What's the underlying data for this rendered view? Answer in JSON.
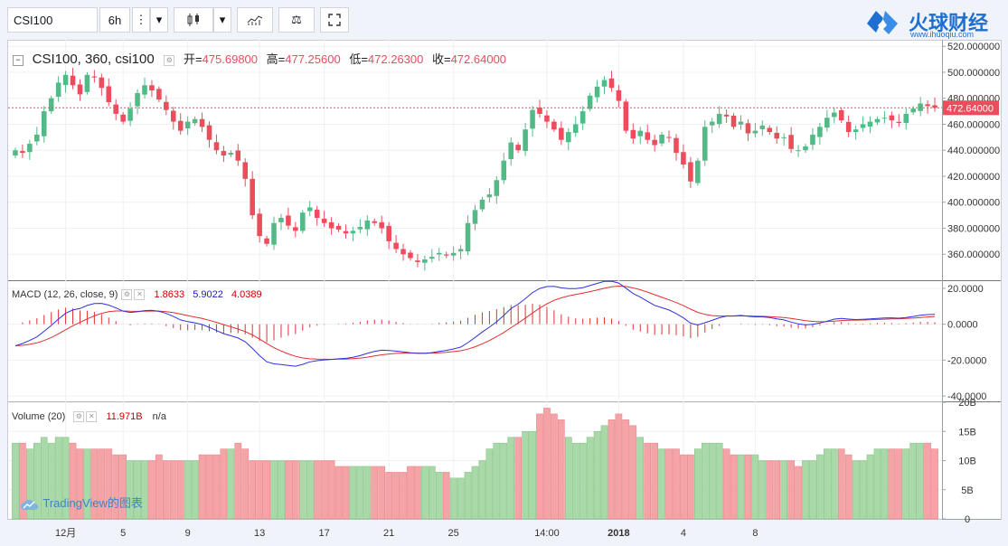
{
  "toolbar": {
    "symbol": "CSI100",
    "interval": "6h"
  },
  "brand": {
    "name": "火球财经",
    "url": "www.ihuoqiu.com"
  },
  "price_legend": {
    "title": "CSI100, 360, csi100",
    "open_label": "开=",
    "open": "475.69800",
    "high_label": "高=",
    "high": "477.25600",
    "low_label": "低=",
    "low": "472.26300",
    "close_label": "收=",
    "close": "472.64000"
  },
  "macd_legend": {
    "title": "MACD (12, 26, close, 9)",
    "hist": "1.8633",
    "macd": "5.9022",
    "signal": "4.0389"
  },
  "volume_legend": {
    "title": "Volume (20)",
    "value": "11.971B",
    "ma": "n/a"
  },
  "watermark": "TradingView的图表",
  "colors": {
    "up": "#53b987",
    "down": "#eb4d5c",
    "macd": "#3030e0",
    "signal": "#e03030",
    "up_vol": "#a9d9a8",
    "down_vol": "#f4a3a6"
  },
  "chart_data": [
    {
      "type": "candlestick",
      "title": "CSI100, 360, csi100",
      "ylim": [
        340,
        525
      ],
      "y_ticks": [
        "520.000000",
        "500.000000",
        "480.000000",
        "460.000000",
        "440.000000",
        "420.000000",
        "400.000000",
        "380.000000",
        "360.000000"
      ],
      "last_price_label": "472.64000",
      "last_price": 472.64,
      "x_tick_labels": [
        "12月",
        "5",
        "9",
        "13",
        "17",
        "21",
        "25",
        "14:00",
        "2018",
        "4",
        "8"
      ],
      "closes": [
        440,
        438,
        445,
        452,
        470,
        480,
        492,
        498,
        490,
        483,
        498,
        496,
        488,
        477,
        468,
        462,
        472,
        484,
        490,
        486,
        479,
        471,
        462,
        455,
        462,
        464,
        458,
        448,
        440,
        436,
        438,
        432,
        418,
        390,
        374,
        368,
        384,
        388,
        382,
        378,
        392,
        396,
        388,
        384,
        380,
        379,
        376,
        378,
        381,
        386,
        384,
        380,
        370,
        364,
        360,
        357,
        354,
        356,
        358,
        361,
        359,
        361,
        364,
        384,
        394,
        402,
        406,
        417,
        432,
        446,
        440,
        456,
        471,
        468,
        462,
        456,
        448,
        454,
        460,
        470,
        482,
        489,
        494,
        488,
        478,
        455,
        449,
        455,
        448,
        444,
        452,
        450,
        438,
        429,
        416,
        432,
        458,
        462,
        468,
        466,
        458,
        462,
        453,
        455,
        459,
        454,
        449,
        450,
        441,
        440,
        443,
        452,
        458,
        465,
        469,
        463,
        454,
        456,
        460,
        462,
        464,
        465,
        463,
        461,
        468,
        472,
        476,
        474,
        472.64
      ]
    },
    {
      "type": "line",
      "title": "MACD (12, 26, close, 9)",
      "ylim": [
        -43,
        24
      ],
      "y_ticks": [
        "20.0000",
        "0.0000",
        "-20.0000",
        "-40.0000"
      ],
      "series": [
        {
          "name": "MACD",
          "color": "#3030e0"
        },
        {
          "name": "Signal",
          "color": "#e03030"
        },
        {
          "name": "Histogram",
          "color": "#e03030"
        }
      ]
    },
    {
      "type": "bar",
      "title": "Volume (20)",
      "ylim": [
        0,
        20
      ],
      "y_ticks": [
        "20B",
        "15B",
        "10B",
        "5B",
        "0"
      ],
      "values": [
        13,
        13,
        12,
        13,
        14,
        13,
        14,
        14,
        13,
        12,
        12,
        12,
        12,
        12,
        11,
        11,
        10,
        10,
        10,
        10,
        11,
        10,
        10,
        10,
        10,
        10,
        11,
        11,
        11,
        12,
        12,
        13,
        12,
        10,
        10,
        10,
        10,
        10,
        10,
        10,
        10,
        10,
        10,
        10,
        10,
        9,
        9,
        9,
        9,
        9,
        9,
        9,
        8,
        8,
        8,
        9,
        9,
        9,
        9,
        8,
        8,
        7,
        7,
        8,
        9,
        10,
        12,
        13,
        13,
        14,
        14,
        15,
        15,
        18,
        19,
        18,
        17,
        14,
        13,
        13,
        14,
        15,
        16,
        17,
        18,
        17,
        16,
        14,
        13,
        13,
        12,
        12,
        12,
        11,
        11,
        12,
        13,
        13,
        13,
        12,
        11,
        11,
        11,
        11,
        10,
        10,
        10,
        10,
        10,
        9,
        10,
        10,
        11,
        12,
        12,
        12,
        11,
        10,
        10,
        11,
        12,
        12,
        12,
        12,
        12,
        13,
        13,
        13,
        12
      ]
    }
  ]
}
